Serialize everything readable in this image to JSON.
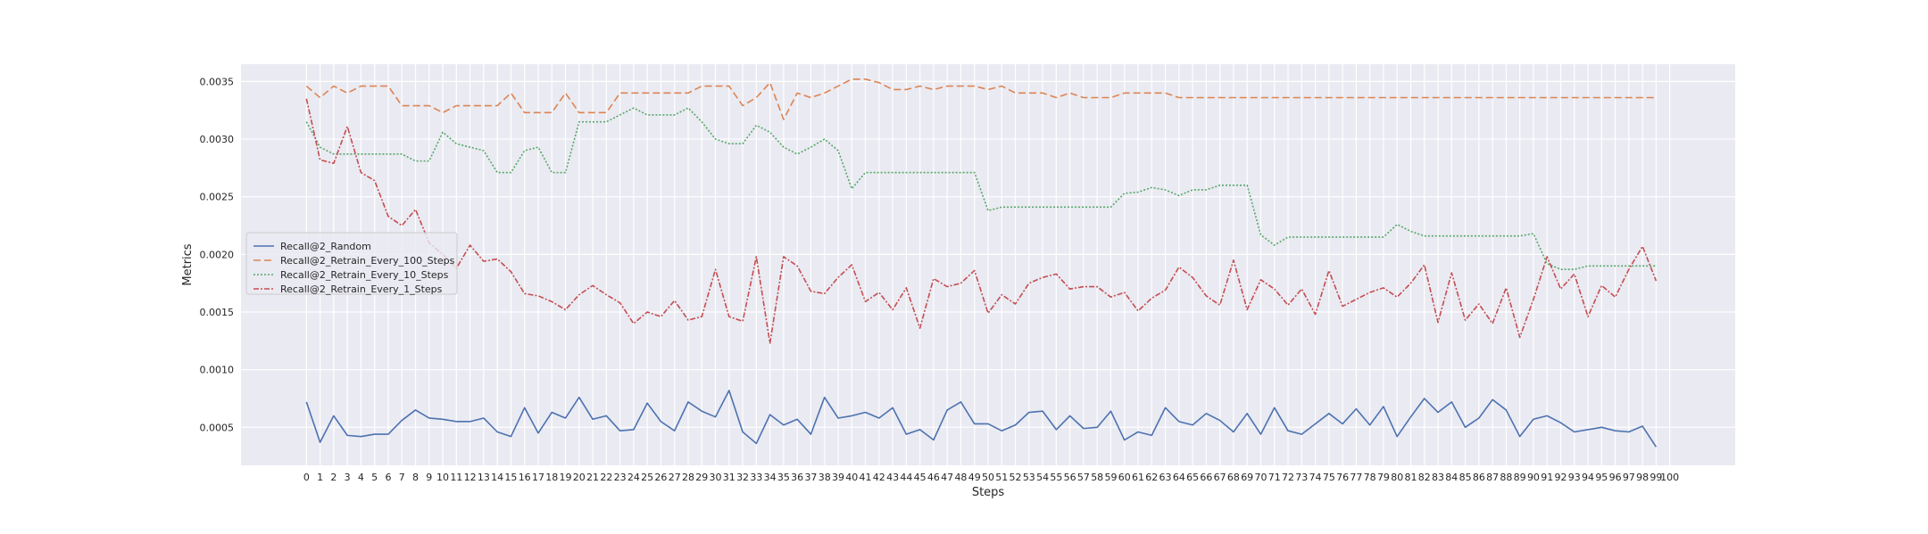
{
  "chart_data": {
    "type": "line",
    "xlabel": "Steps",
    "ylabel": "Metrics",
    "x_ticks": [
      0,
      1,
      2,
      3,
      4,
      5,
      6,
      7,
      8,
      9,
      10,
      11,
      12,
      13,
      14,
      15,
      16,
      17,
      18,
      19,
      20,
      21,
      22,
      23,
      24,
      25,
      26,
      27,
      28,
      29,
      30,
      31,
      32,
      33,
      34,
      35,
      36,
      37,
      38,
      39,
      40,
      41,
      42,
      43,
      44,
      45,
      46,
      47,
      48,
      49,
      50,
      51,
      52,
      53,
      54,
      55,
      56,
      57,
      58,
      59,
      60,
      61,
      62,
      63,
      64,
      65,
      66,
      67,
      68,
      69,
      70,
      71,
      72,
      73,
      74,
      75,
      76,
      77,
      78,
      79,
      80,
      81,
      82,
      83,
      84,
      85,
      86,
      87,
      88,
      89,
      90,
      91,
      92,
      93,
      94,
      95,
      96,
      97,
      98,
      99,
      100
    ],
    "y_ticks": [
      "0.0005",
      "0.0010",
      "0.0015",
      "0.0020",
      "0.0025",
      "0.0030",
      "0.0035"
    ],
    "y_tick_values": [
      0.0005,
      0.001,
      0.0015,
      0.002,
      0.0025,
      0.003,
      0.0035
    ],
    "xlim": [
      -4.8,
      104.8
    ],
    "ylim": [
      0.00017,
      0.00365
    ],
    "grid": true,
    "legend_position": "center-left",
    "colors": {
      "plot_background": "#eaeaf2",
      "grid": "#ffffff",
      "text": "#262626"
    },
    "series": [
      {
        "name": "Recall@2_Random",
        "color": "#4c72b0",
        "dash": "",
        "values": [
          0.00072,
          0.00037,
          0.0006,
          0.00043,
          0.00042,
          0.00044,
          0.00044,
          0.00056,
          0.00065,
          0.00058,
          0.00057,
          0.00055,
          0.00055,
          0.00058,
          0.00046,
          0.00042,
          0.00067,
          0.00045,
          0.00063,
          0.00058,
          0.00076,
          0.00057,
          0.0006,
          0.00047,
          0.00048,
          0.00071,
          0.00055,
          0.00047,
          0.00072,
          0.00064,
          0.00059,
          0.00082,
          0.00046,
          0.00036,
          0.00061,
          0.00052,
          0.00057,
          0.00044,
          0.00076,
          0.00058,
          0.0006,
          0.00063,
          0.00058,
          0.00067,
          0.00044,
          0.00048,
          0.00039,
          0.00065,
          0.00072,
          0.00053,
          0.00053,
          0.00047,
          0.00052,
          0.00063,
          0.00064,
          0.00048,
          0.0006,
          0.00049,
          0.0005,
          0.00064,
          0.00039,
          0.00046,
          0.00043,
          0.00067,
          0.00055,
          0.00052,
          0.00062,
          0.00056,
          0.00046,
          0.00062,
          0.00044,
          0.00067,
          0.00047,
          0.00044,
          0.00053,
          0.00062,
          0.00053,
          0.00066,
          0.00052,
          0.00068,
          0.00042,
          0.00059,
          0.00075,
          0.00063,
          0.00072,
          0.0005,
          0.00058,
          0.00074,
          0.00065,
          0.00042,
          0.00057,
          0.0006,
          0.00054,
          0.00046,
          0.00048,
          0.0005,
          0.00047,
          0.00046,
          0.00051,
          0.00033
        ]
      },
      {
        "name": "Recall@2_Retrain_Every_100_Steps",
        "color": "#dd8452",
        "dash": "8 4",
        "values": [
          0.00346,
          0.00336,
          0.00346,
          0.0034,
          0.00346,
          0.00346,
          0.00346,
          0.00329,
          0.00329,
          0.00329,
          0.00323,
          0.00329,
          0.00329,
          0.00329,
          0.00329,
          0.0034,
          0.00323,
          0.00323,
          0.00323,
          0.0034,
          0.00323,
          0.00323,
          0.00323,
          0.0034,
          0.0034,
          0.0034,
          0.0034,
          0.0034,
          0.0034,
          0.00346,
          0.00346,
          0.00346,
          0.00329,
          0.00336,
          0.00349,
          0.00317,
          0.0034,
          0.00336,
          0.0034,
          0.00346,
          0.00352,
          0.00352,
          0.00349,
          0.00343,
          0.00343,
          0.00346,
          0.00343,
          0.00346,
          0.00346,
          0.00346,
          0.00343,
          0.00346,
          0.0034,
          0.0034,
          0.0034,
          0.00336,
          0.0034,
          0.00336,
          0.00336,
          0.00336,
          0.0034,
          0.0034,
          0.0034,
          0.0034,
          0.00336,
          0.00336,
          0.00336,
          0.00336,
          0.00336,
          0.00336,
          0.00336,
          0.00336,
          0.00336,
          0.00336,
          0.00336,
          0.00336,
          0.00336,
          0.00336,
          0.00336,
          0.00336,
          0.00336,
          0.00336,
          0.00336,
          0.00336,
          0.00336,
          0.00336,
          0.00336,
          0.00336,
          0.00336,
          0.00336,
          0.00336,
          0.00336,
          0.00336,
          0.00336,
          0.00336,
          0.00336,
          0.00336,
          0.00336,
          0.00336,
          0.00336
        ]
      },
      {
        "name": "Recall@2_Retrain_Every_10_Steps",
        "color": "#55a868",
        "dash": "2 2",
        "values": [
          0.00315,
          0.00293,
          0.00287,
          0.00287,
          0.00287,
          0.00287,
          0.00287,
          0.00287,
          0.00281,
          0.00281,
          0.00306,
          0.00296,
          0.00293,
          0.0029,
          0.00271,
          0.00271,
          0.0029,
          0.00293,
          0.00271,
          0.00271,
          0.00315,
          0.00315,
          0.00315,
          0.00321,
          0.00327,
          0.00321,
          0.00321,
          0.00321,
          0.00327,
          0.00315,
          0.003,
          0.00296,
          0.00296,
          0.00312,
          0.00306,
          0.00293,
          0.00287,
          0.00293,
          0.003,
          0.0029,
          0.00257,
          0.00271,
          0.00271,
          0.00271,
          0.00271,
          0.00271,
          0.00271,
          0.00271,
          0.00271,
          0.00271,
          0.00238,
          0.00241,
          0.00241,
          0.00241,
          0.00241,
          0.00241,
          0.00241,
          0.00241,
          0.00241,
          0.00241,
          0.00253,
          0.00254,
          0.00258,
          0.00256,
          0.00251,
          0.00256,
          0.00256,
          0.0026,
          0.0026,
          0.0026,
          0.00217,
          0.00208,
          0.00215,
          0.00215,
          0.00215,
          0.00215,
          0.00215,
          0.00215,
          0.00215,
          0.00215,
          0.00226,
          0.0022,
          0.00216,
          0.00216,
          0.00216,
          0.00216,
          0.00216,
          0.00216,
          0.00216,
          0.00216,
          0.00218,
          0.00192,
          0.00187,
          0.00187,
          0.0019,
          0.0019,
          0.0019,
          0.0019,
          0.0019,
          0.0019
        ]
      },
      {
        "name": "Recall@2_Retrain_Every_1_Steps",
        "color": "#c44e52",
        "dash": "6 2 2 2",
        "values": [
          0.00335,
          0.00282,
          0.00279,
          0.00311,
          0.00271,
          0.00264,
          0.00233,
          0.00225,
          0.00239,
          0.0021,
          0.002,
          0.00188,
          0.00208,
          0.00194,
          0.00196,
          0.00185,
          0.00166,
          0.00164,
          0.00159,
          0.00152,
          0.00165,
          0.00173,
          0.00165,
          0.00158,
          0.0014,
          0.0015,
          0.00146,
          0.0016,
          0.00143,
          0.00146,
          0.00187,
          0.00146,
          0.00142,
          0.00198,
          0.00123,
          0.00198,
          0.0019,
          0.00168,
          0.00166,
          0.0018,
          0.00191,
          0.00159,
          0.00167,
          0.00152,
          0.00171,
          0.00136,
          0.00179,
          0.00172,
          0.00175,
          0.00186,
          0.00149,
          0.00165,
          0.00157,
          0.00175,
          0.0018,
          0.00183,
          0.0017,
          0.00172,
          0.00172,
          0.00163,
          0.00167,
          0.00151,
          0.00162,
          0.00169,
          0.00189,
          0.0018,
          0.00164,
          0.00156,
          0.00195,
          0.00152,
          0.00178,
          0.0017,
          0.00156,
          0.0017,
          0.00148,
          0.00186,
          0.00155,
          0.00161,
          0.00167,
          0.00171,
          0.00163,
          0.00175,
          0.00191,
          0.00141,
          0.00184,
          0.00143,
          0.00157,
          0.0014,
          0.00171,
          0.00128,
          0.00161,
          0.00198,
          0.0017,
          0.00183,
          0.00146,
          0.00173,
          0.00163,
          0.00187,
          0.00207,
          0.00177
        ]
      }
    ]
  }
}
